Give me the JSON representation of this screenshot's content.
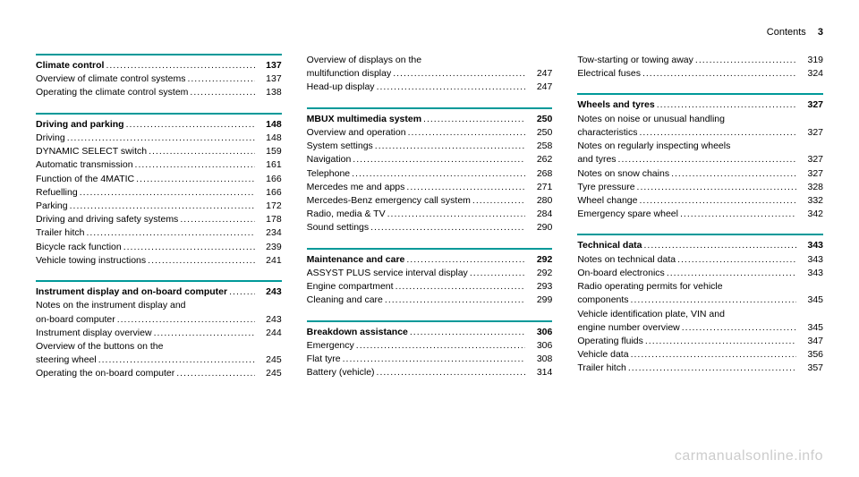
{
  "header": {
    "title": "Contents",
    "page": "3"
  },
  "columns": [
    [
      {
        "divider": true,
        "entries": [
          {
            "label": "Climate control",
            "page": "137",
            "bold": true
          },
          {
            "label": "Overview of climate control systems",
            "page": "137"
          },
          {
            "label": "Operating the climate control system",
            "page": "138"
          }
        ]
      },
      {
        "divider": true,
        "entries": [
          {
            "label": "Driving and parking",
            "page": "148",
            "bold": true
          },
          {
            "label": "Driving",
            "page": "148"
          },
          {
            "label": "DYNAMIC SELECT switch",
            "page": "159"
          },
          {
            "label": "Automatic transmission",
            "page": "161"
          },
          {
            "label": "Function of the 4MATIC",
            "page": "166"
          },
          {
            "label": "Refuelling",
            "page": "166"
          },
          {
            "label": "Parking",
            "page": "172"
          },
          {
            "label": "Driving and driving safety systems",
            "page": "178"
          },
          {
            "label": "Trailer hitch",
            "page": "234"
          },
          {
            "label": "Bicycle rack function",
            "page": "239"
          },
          {
            "label": "Vehicle towing instructions",
            "page": "241"
          }
        ]
      },
      {
        "divider": true,
        "entries": [
          {
            "label": "Instrument display and on-board computer",
            "page": "243",
            "bold": true
          },
          {
            "label": "Notes on the instrument display and on-board computer",
            "page": "243"
          },
          {
            "label": "Instrument display overview",
            "page": "244"
          },
          {
            "label": "Overview of the buttons on the steering wheel",
            "page": "245"
          },
          {
            "label": "Operating the on-board computer",
            "page": "245"
          }
        ]
      }
    ],
    [
      {
        "divider": false,
        "entries": [
          {
            "label": "Overview of displays on the multifunction display",
            "page": "247"
          },
          {
            "label": "Head-up display",
            "page": "247"
          }
        ]
      },
      {
        "divider": true,
        "entries": [
          {
            "label": "MBUX multimedia system",
            "page": "250",
            "bold": true
          },
          {
            "label": "Overview and operation",
            "page": "250"
          },
          {
            "label": "System settings",
            "page": "258"
          },
          {
            "label": "Navigation",
            "page": "262"
          },
          {
            "label": "Telephone",
            "page": "268"
          },
          {
            "label": "Mercedes me and apps",
            "page": "271"
          },
          {
            "label": "Mercedes-Benz emergency call system",
            "page": "280"
          },
          {
            "label": "Radio, media & TV",
            "page": "284"
          },
          {
            "label": "Sound settings",
            "page": "290"
          }
        ]
      },
      {
        "divider": true,
        "entries": [
          {
            "label": "Maintenance and care",
            "page": "292",
            "bold": true
          },
          {
            "label": "ASSYST PLUS service interval display",
            "page": "292"
          },
          {
            "label": "Engine compartment",
            "page": "293"
          },
          {
            "label": "Cleaning and care",
            "page": "299"
          }
        ]
      },
      {
        "divider": true,
        "entries": [
          {
            "label": "Breakdown assistance",
            "page": "306",
            "bold": true
          },
          {
            "label": "Emergency",
            "page": "306"
          },
          {
            "label": "Flat tyre",
            "page": "308"
          },
          {
            "label": "Battery (vehicle)",
            "page": "314"
          }
        ]
      }
    ],
    [
      {
        "divider": false,
        "entries": [
          {
            "label": "Tow-starting or towing away",
            "page": "319"
          },
          {
            "label": "Electrical fuses",
            "page": "324"
          }
        ]
      },
      {
        "divider": true,
        "entries": [
          {
            "label": "Wheels and tyres",
            "page": "327",
            "bold": true
          },
          {
            "label": "Notes on noise or unusual handling characteristics",
            "page": "327"
          },
          {
            "label": "Notes on regularly inspecting wheels and tyres",
            "page": "327"
          },
          {
            "label": "Notes on snow chains",
            "page": "327"
          },
          {
            "label": "Tyre pressure",
            "page": "328"
          },
          {
            "label": "Wheel change",
            "page": "332"
          },
          {
            "label": "Emergency spare wheel",
            "page": "342"
          }
        ]
      },
      {
        "divider": true,
        "entries": [
          {
            "label": "Technical data",
            "page": "343",
            "bold": true
          },
          {
            "label": "Notes on technical data",
            "page": "343"
          },
          {
            "label": "On-board electronics",
            "page": "343"
          },
          {
            "label": "Radio operating permits for vehicle components",
            "page": "345"
          },
          {
            "label": "Vehicle identification plate, VIN and engine number overview",
            "page": "345"
          },
          {
            "label": "Operating fluids",
            "page": "347"
          },
          {
            "label": "Vehicle data",
            "page": "356"
          },
          {
            "label": "Trailer hitch",
            "page": "357"
          }
        ]
      }
    ]
  ],
  "watermark": "carmanualsonline.info",
  "styles": {
    "divider_color": "#009999",
    "text_color": "#000000",
    "background_color": "#ffffff",
    "watermark_color": "#cccccc",
    "font_size_body": 10.5,
    "font_size_watermark": 16
  }
}
